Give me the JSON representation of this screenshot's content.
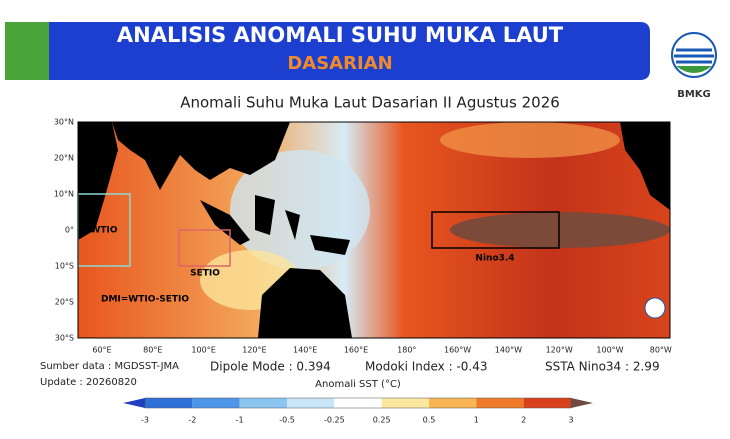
{
  "header": {
    "title": "ANALISIS ANOMALI SUHU MUKA LAUT",
    "subtitle": "DASARIAN",
    "logo": "BMKG"
  },
  "map": {
    "title": "Anomali Suhu Muka Laut Dasarian II Agustus 2026",
    "lat_labels": [
      "30°N",
      "20°N",
      "10°N",
      "0°",
      "10°S",
      "20°S",
      "30°S"
    ],
    "lon_labels": [
      "60°E",
      "80°E",
      "100°E",
      "120°E",
      "140°E",
      "160°E",
      "180°",
      "160°W",
      "140°W",
      "120°W",
      "100°W",
      "80°W"
    ],
    "regions": {
      "wtio": "WTIO",
      "setio": "SETIO",
      "dmi": "DMI=WTIO-SETIO",
      "nino": "Nino3.4"
    }
  },
  "footer": {
    "source": "Sumber data : MGDSST-JMA",
    "update": "Update : 20260820",
    "dipole": "Dipole Mode : 0.394",
    "modoki": "Modoki Index : -0.43",
    "ssta": "SSTA Nino34 : 2.99"
  },
  "colorbar": {
    "label": "Anomali SST (°C)",
    "ticks": [
      "-3",
      "-2",
      "-1",
      "-0.5",
      "-0.25",
      "0.25",
      "0.5",
      "1",
      "2",
      "3"
    ]
  }
}
